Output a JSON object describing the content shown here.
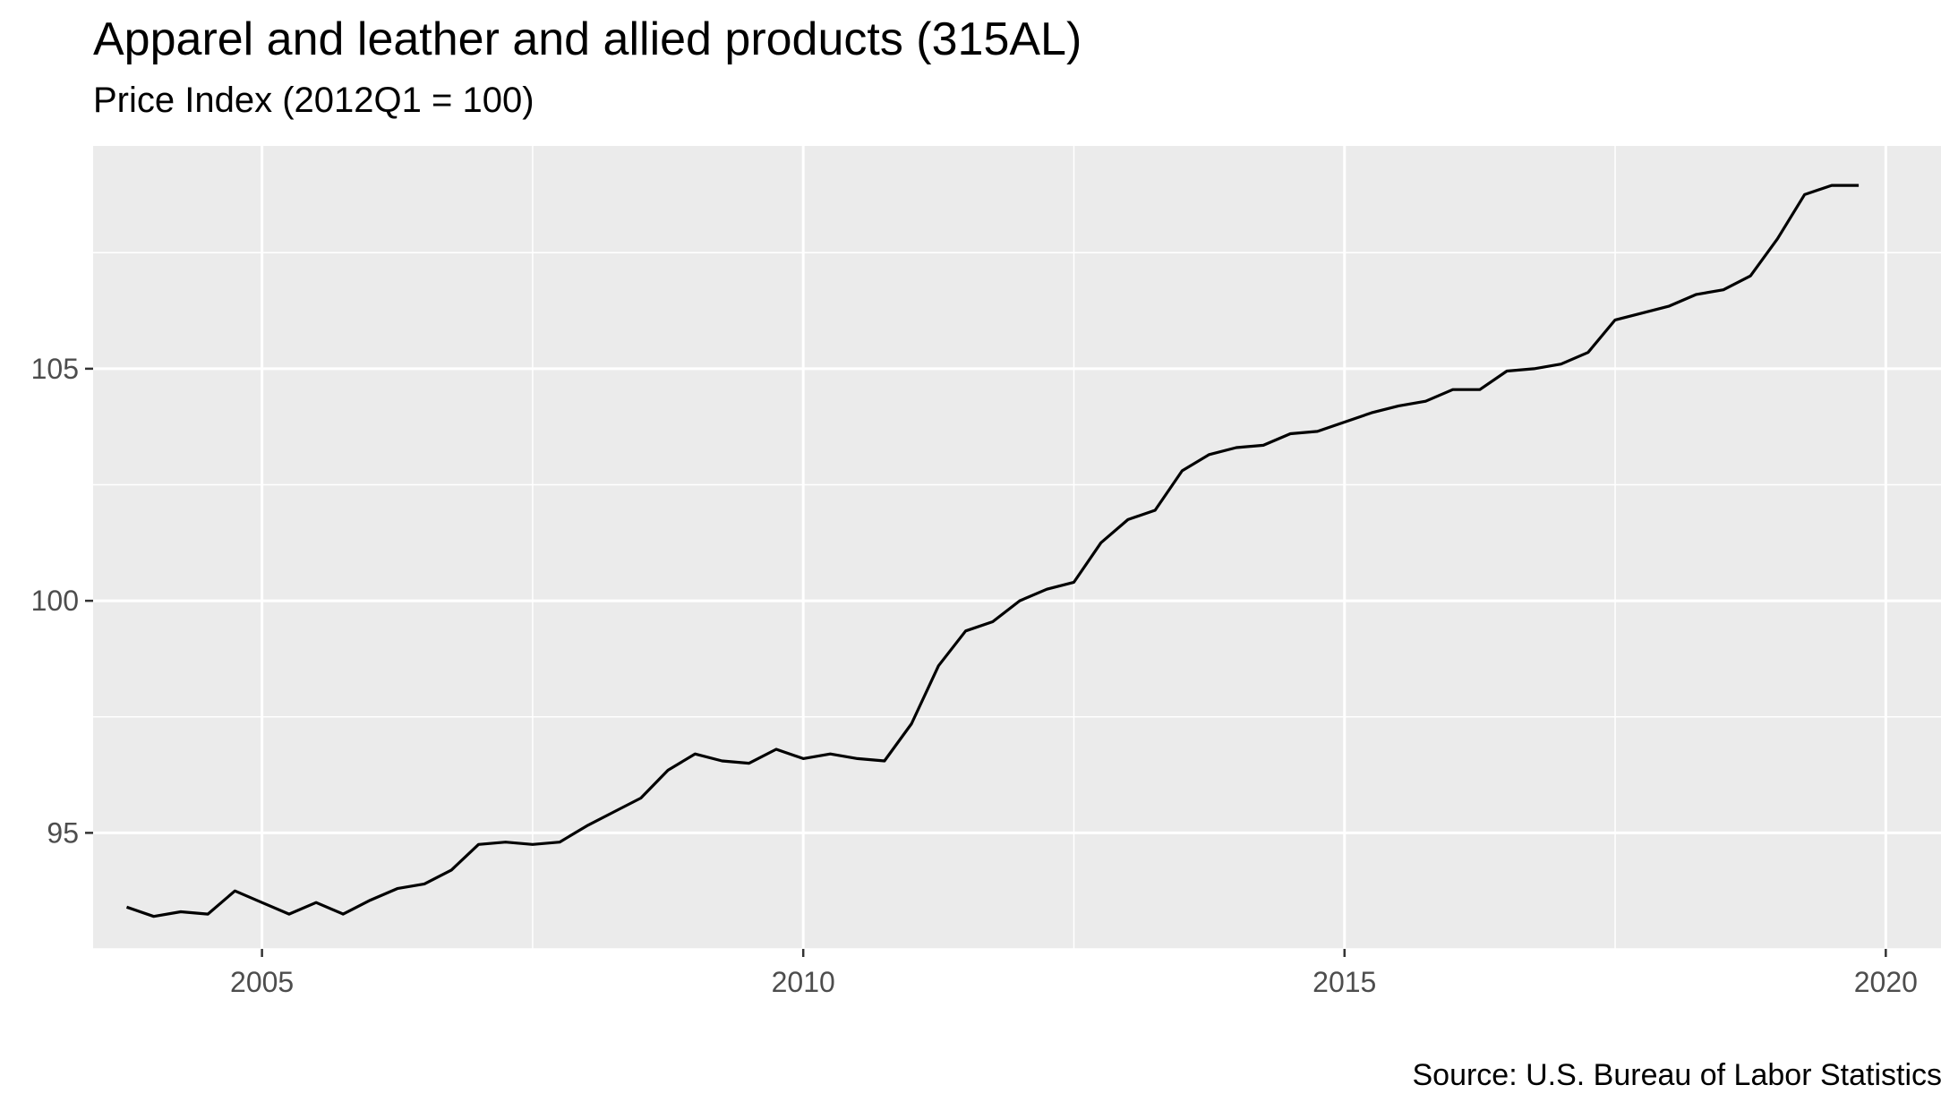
{
  "title": "Apparel and leather and allied products (315AL)",
  "subtitle": "Price Index (2012Q1 = 100)",
  "caption": "Source: U.S. Bureau of Labor Statistics",
  "colors": {
    "panel": "#EBEBEB",
    "grid": "#FFFFFF",
    "line": "#000000",
    "tick_text": "#4D4D4D"
  },
  "chart_data": {
    "type": "line",
    "title": "Apparel and leather and allied products (315AL)",
    "subtitle": "Price Index (2012Q1 = 100)",
    "xlabel": "",
    "ylabel": "",
    "grid": true,
    "legend": "none",
    "xlim": [
      2003.44,
      2020.51
    ],
    "ylim": [
      92.5,
      109.8
    ],
    "x_ticks": [
      2005,
      2010,
      2015,
      2020
    ],
    "y_ticks": [
      95,
      100,
      105
    ],
    "series": [
      {
        "x": [
          2003.75,
          2004.0,
          2004.25,
          2004.5,
          2004.75,
          2005.0,
          2005.25,
          2005.5,
          2005.75,
          2006.0,
          2006.25,
          2006.5,
          2006.75,
          2007.0,
          2007.25,
          2007.5,
          2007.75,
          2008.0,
          2008.25,
          2008.5,
          2008.75,
          2009.0,
          2009.25,
          2009.5,
          2009.75,
          2010.0,
          2010.25,
          2010.5,
          2010.75,
          2011.0,
          2011.25,
          2011.5,
          2011.75,
          2012.0,
          2012.25,
          2012.5,
          2012.75,
          2013.0,
          2013.25,
          2013.5,
          2013.75,
          2014.0,
          2014.25,
          2014.5,
          2014.75,
          2015.0,
          2015.25,
          2015.5,
          2015.75,
          2016.0,
          2016.25,
          2016.5,
          2016.75,
          2017.0,
          2017.25,
          2017.5,
          2017.75,
          2018.0,
          2018.25,
          2018.5,
          2018.75,
          2019.0,
          2019.25,
          2019.5,
          2019.75
        ],
        "y": [
          93.4,
          93.2,
          93.3,
          93.25,
          93.75,
          93.5,
          93.25,
          93.5,
          93.25,
          93.55,
          93.8,
          93.9,
          94.2,
          94.75,
          94.8,
          94.75,
          94.8,
          95.15,
          95.45,
          95.75,
          96.35,
          96.7,
          96.55,
          96.5,
          96.8,
          96.6,
          96.7,
          96.6,
          96.55,
          97.35,
          98.6,
          99.35,
          99.55,
          100.0,
          100.25,
          100.4,
          101.25,
          101.75,
          101.95,
          102.8,
          103.15,
          103.3,
          103.35,
          103.6,
          103.65,
          103.85,
          104.05,
          104.2,
          104.3,
          104.55,
          104.55,
          104.95,
          105.0,
          105.1,
          105.35,
          106.05,
          106.2,
          106.35,
          106.6,
          106.7,
          107.0,
          107.8,
          108.75,
          108.95,
          108.95
        ]
      }
    ]
  }
}
